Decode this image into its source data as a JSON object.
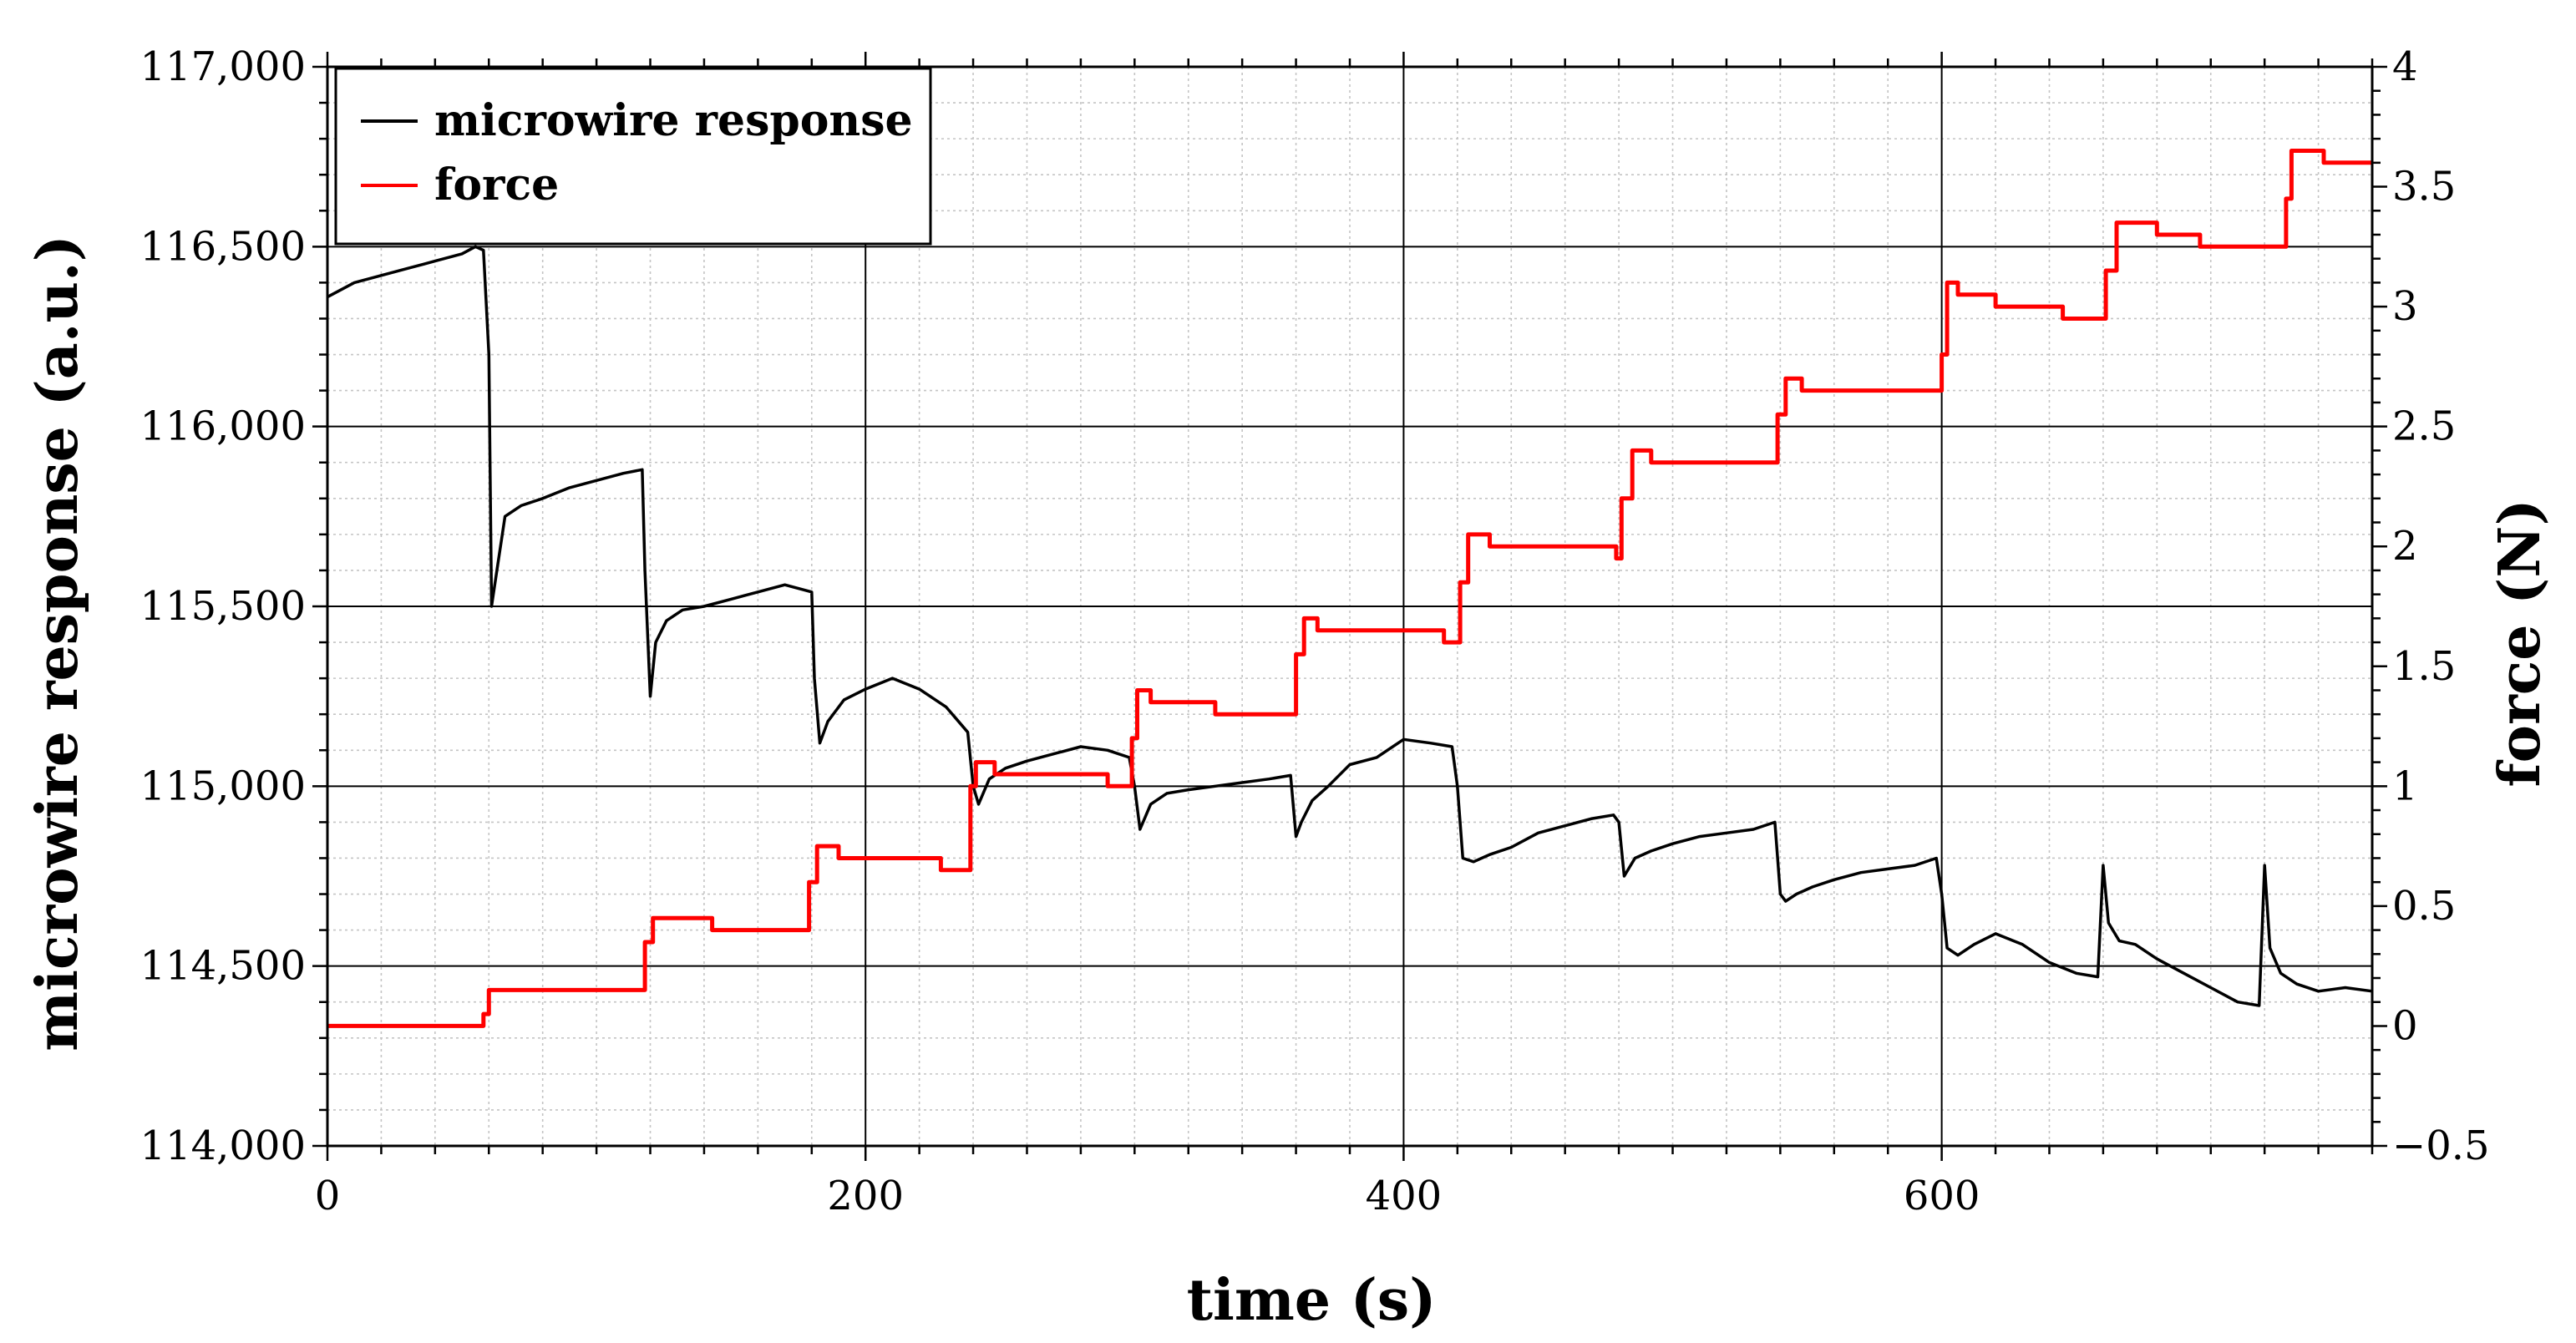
{
  "chart_data": {
    "type": "line",
    "xlabel": "time (s)",
    "ylabel": "microwire response (a.u.)",
    "y2label": "force (N)",
    "xlim": [
      0,
      760
    ],
    "ylim": [
      114000,
      117000
    ],
    "y2lim": [
      -0.5,
      4
    ],
    "x_ticks": [
      0,
      200,
      400,
      600
    ],
    "x_tick_labels": [
      "0",
      "200",
      "400",
      "600"
    ],
    "y_ticks": [
      114000,
      114500,
      115000,
      115500,
      116000,
      116500,
      117000
    ],
    "y_tick_labels": [
      "114,000",
      "114,500",
      "115,000",
      "115,500",
      "116,000",
      "116,500",
      "117,000"
    ],
    "y2_ticks": [
      -0.5,
      0,
      0.5,
      1,
      1.5,
      2,
      2.5,
      3,
      3.5,
      4
    ],
    "y2_tick_labels": [
      "−0.5",
      "0",
      "0.5",
      "1",
      "1.5",
      "2",
      "2.5",
      "3",
      "3.5",
      "4"
    ],
    "grid": true,
    "legend_position": "top-left",
    "series": [
      {
        "name": "microwire response",
        "color": "#000000",
        "axis": "left",
        "x": [
          0,
          10,
          20,
          30,
          40,
          50,
          55,
          58,
          60,
          61,
          63,
          66,
          72,
          80,
          90,
          100,
          110,
          117,
          118,
          120,
          122,
          126,
          132,
          140,
          150,
          160,
          170,
          180,
          181,
          183,
          186,
          192,
          200,
          210,
          220,
          230,
          238,
          240,
          242,
          246,
          252,
          260,
          270,
          280,
          290,
          298,
          300,
          302,
          306,
          312,
          320,
          330,
          340,
          350,
          358,
          360,
          362,
          366,
          372,
          380,
          390,
          400,
          410,
          418,
          420,
          422,
          426,
          432,
          440,
          450,
          460,
          470,
          478,
          480,
          482,
          486,
          492,
          500,
          510,
          520,
          530,
          538,
          540,
          542,
          546,
          552,
          560,
          570,
          580,
          590,
          598,
          600,
          602,
          606,
          612,
          620,
          630,
          640,
          650,
          658,
          660,
          662,
          666,
          672,
          680,
          690,
          700,
          710,
          718,
          720,
          722,
          726,
          732,
          740,
          750,
          760
        ],
        "y": [
          116360,
          116400,
          116420,
          116440,
          116460,
          116480,
          116500,
          116490,
          116200,
          115500,
          115600,
          115750,
          115780,
          115800,
          115830,
          115850,
          115870,
          115880,
          115600,
          115250,
          115400,
          115460,
          115490,
          115500,
          115520,
          115540,
          115560,
          115540,
          115300,
          115120,
          115180,
          115240,
          115270,
          115300,
          115270,
          115220,
          115150,
          115000,
          114950,
          115020,
          115050,
          115070,
          115090,
          115110,
          115100,
          115080,
          115000,
          114880,
          114950,
          114980,
          114990,
          115000,
          115010,
          115020,
          115030,
          114860,
          114900,
          114960,
          115000,
          115060,
          115080,
          115130,
          115120,
          115110,
          115000,
          114800,
          114790,
          114810,
          114830,
          114870,
          114890,
          114910,
          114920,
          114900,
          114750,
          114800,
          114820,
          114840,
          114860,
          114870,
          114880,
          114900,
          114700,
          114680,
          114700,
          114720,
          114740,
          114760,
          114770,
          114780,
          114800,
          114700,
          114550,
          114530,
          114560,
          114590,
          114560,
          114510,
          114480,
          114470,
          114780,
          114620,
          114570,
          114560,
          114520,
          114480,
          114440,
          114400,
          114390,
          114780,
          114550,
          114480,
          114450,
          114430,
          114440,
          114430
        ]
      },
      {
        "name": "force",
        "color": "#ff0000",
        "axis": "right",
        "x": [
          0,
          58,
          58,
          60,
          60,
          118,
          118,
          121,
          121,
          143,
          143,
          179,
          179,
          182,
          182,
          190,
          190,
          228,
          228,
          239,
          239,
          241,
          241,
          248,
          248,
          290,
          290,
          299,
          299,
          301,
          301,
          306,
          306,
          330,
          330,
          360,
          360,
          363,
          363,
          368,
          368,
          415,
          415,
          421,
          421,
          424,
          424,
          432,
          432,
          479,
          479,
          481,
          481,
          485,
          485,
          492,
          492,
          539,
          539,
          542,
          542,
          548,
          548,
          600,
          600,
          602,
          602,
          606,
          606,
          620,
          620,
          645,
          645,
          661,
          661,
          665,
          665,
          680,
          680,
          696,
          696,
          728,
          728,
          730,
          730,
          742,
          742,
          760
        ],
        "y": [
          0,
          0,
          0.05,
          0.05,
          0.15,
          0.15,
          0.35,
          0.35,
          0.45,
          0.45,
          0.4,
          0.4,
          0.6,
          0.6,
          0.75,
          0.75,
          0.7,
          0.7,
          0.65,
          0.65,
          1.0,
          1.0,
          1.1,
          1.1,
          1.05,
          1.05,
          1.0,
          1.0,
          1.2,
          1.2,
          1.4,
          1.4,
          1.35,
          1.35,
          1.3,
          1.3,
          1.55,
          1.55,
          1.7,
          1.7,
          1.65,
          1.65,
          1.6,
          1.6,
          1.85,
          1.85,
          2.05,
          2.05,
          2.0,
          2.0,
          1.95,
          1.95,
          2.2,
          2.2,
          2.4,
          2.4,
          2.35,
          2.35,
          2.55,
          2.55,
          2.7,
          2.7,
          2.65,
          2.65,
          2.8,
          2.8,
          3.1,
          3.1,
          3.05,
          3.05,
          3.0,
          3.0,
          2.95,
          2.95,
          3.15,
          3.15,
          3.35,
          3.35,
          3.3,
          3.3,
          3.25,
          3.25,
          3.45,
          3.45,
          3.65,
          3.65,
          3.6,
          3.6
        ]
      }
    ]
  }
}
